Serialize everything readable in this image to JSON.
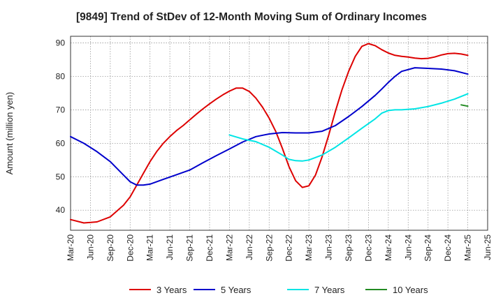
{
  "chart_data": {
    "type": "line",
    "title": "[9849]  Trend of StDev of 12-Month Moving Sum of Ordinary Incomes",
    "xlabel": "",
    "ylabel": "Amount (million yen)",
    "ylim": [
      34,
      92
    ],
    "yticks": [
      40,
      50,
      60,
      70,
      80,
      90
    ],
    "x_tick_labels": [
      "Mar-20",
      "Jun-20",
      "Sep-20",
      "Dec-20",
      "Mar-21",
      "Jun-21",
      "Sep-21",
      "Dec-21",
      "Mar-22",
      "Jun-22",
      "Sep-22",
      "Dec-22",
      "Mar-23",
      "Jun-23",
      "Sep-23",
      "Dec-23",
      "Mar-24",
      "Jun-24",
      "Sep-24",
      "Dec-24",
      "Mar-25",
      "Jun-25"
    ],
    "x_range": [
      0,
      63
    ],
    "grid": true,
    "legend_position": "bottom",
    "series": [
      {
        "name": "3 Years",
        "color": "#dd0000",
        "x": [
          0,
          2,
          4,
          6,
          8,
          9,
          10,
          11,
          12,
          13,
          14,
          15,
          16,
          17,
          18,
          19,
          20,
          21,
          22,
          23,
          24,
          25,
          26,
          27,
          28,
          29,
          30,
          31,
          32,
          33,
          34,
          35,
          36,
          37,
          38,
          39,
          40,
          41,
          42,
          43,
          44,
          45,
          46,
          47,
          48,
          49,
          50,
          51,
          52,
          53,
          54,
          55,
          56,
          57,
          58,
          59,
          60
        ],
        "y": [
          37.2,
          36.2,
          36.5,
          38.0,
          41.5,
          44.0,
          47.5,
          51.0,
          54.5,
          57.5,
          60.0,
          62.0,
          63.8,
          65.3,
          67.0,
          68.7,
          70.3,
          71.8,
          73.2,
          74.5,
          75.6,
          76.5,
          76.5,
          75.5,
          73.5,
          70.8,
          67.5,
          63.5,
          58.5,
          53.0,
          48.8,
          46.8,
          47.3,
          50.5,
          56.0,
          62.5,
          69.5,
          76.0,
          81.5,
          86.0,
          89.0,
          89.8,
          89.2,
          88.0,
          87.0,
          86.3,
          86.0,
          85.8,
          85.5,
          85.3,
          85.4,
          85.8,
          86.4,
          86.8,
          86.9,
          86.7,
          86.3
        ]
      },
      {
        "name": "5 Years",
        "color": "#0000cc",
        "x": [
          0,
          2,
          4,
          6,
          8,
          9,
          10,
          11,
          12,
          14,
          16,
          18,
          20,
          22,
          24,
          26,
          28,
          30,
          32,
          34,
          36,
          38,
          40,
          42,
          44,
          46,
          47,
          48,
          49,
          50,
          52,
          54,
          56,
          58,
          60
        ],
        "y": [
          62.0,
          60.0,
          57.5,
          54.5,
          50.5,
          48.5,
          47.5,
          47.5,
          47.8,
          49.2,
          50.6,
          52.0,
          54.2,
          56.3,
          58.3,
          60.4,
          62.0,
          62.8,
          63.2,
          63.1,
          63.1,
          63.6,
          65.3,
          68.0,
          71.0,
          74.3,
          76.2,
          78.2,
          80.0,
          81.5,
          82.6,
          82.4,
          82.2,
          81.7,
          80.7
        ]
      },
      {
        "name": "7 Years",
        "color": "#00e5e5",
        "x": [
          24,
          26,
          28,
          30,
          32,
          33,
          34,
          35,
          36,
          38,
          40,
          42,
          44,
          46,
          47,
          48,
          49,
          50,
          52,
          54,
          56,
          58,
          60
        ],
        "y": [
          62.5,
          61.3,
          60.5,
          58.8,
          56.5,
          55.2,
          54.8,
          54.7,
          55.0,
          56.5,
          58.8,
          61.6,
          64.5,
          67.3,
          69.0,
          69.8,
          70.0,
          70.0,
          70.3,
          71.0,
          72.0,
          73.2,
          74.8
        ]
      },
      {
        "name": "10 Years",
        "color": "#228b22",
        "x": [
          59,
          60
        ],
        "y": [
          71.5,
          71.1
        ]
      }
    ]
  }
}
